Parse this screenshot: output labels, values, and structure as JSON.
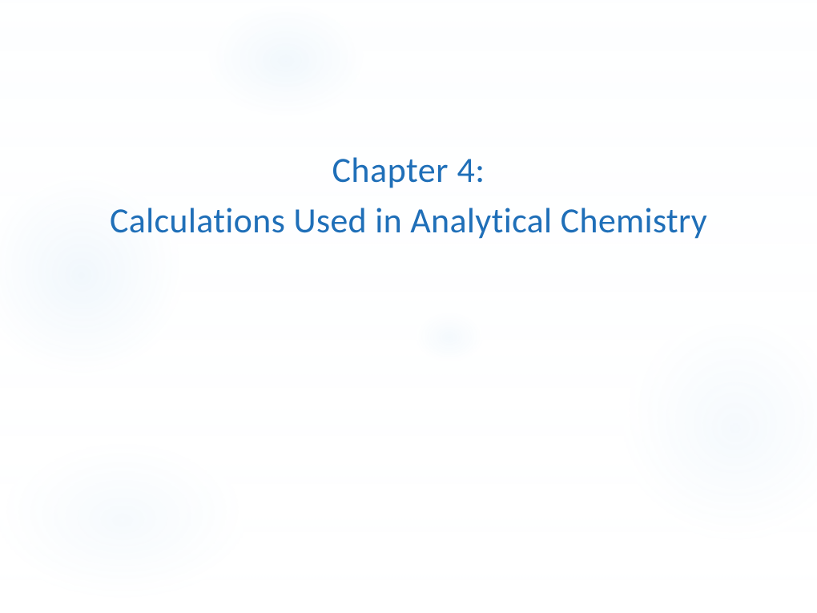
{
  "slide": {
    "chapter_label": "Chapter 4:",
    "subtitle": "Calculations Used in Analytical Chemistry",
    "title_color": "#1f6fb8",
    "title_fontsize": 44,
    "title_fontweight": "400",
    "background_color": "#ffffff",
    "background_overlay_opacity": 0.12,
    "background_tint": "#aed4ee",
    "font_family": "Calibri, 'Segoe UI', Arial, sans-serif",
    "aspect_width": 1020,
    "aspect_height": 765
  }
}
